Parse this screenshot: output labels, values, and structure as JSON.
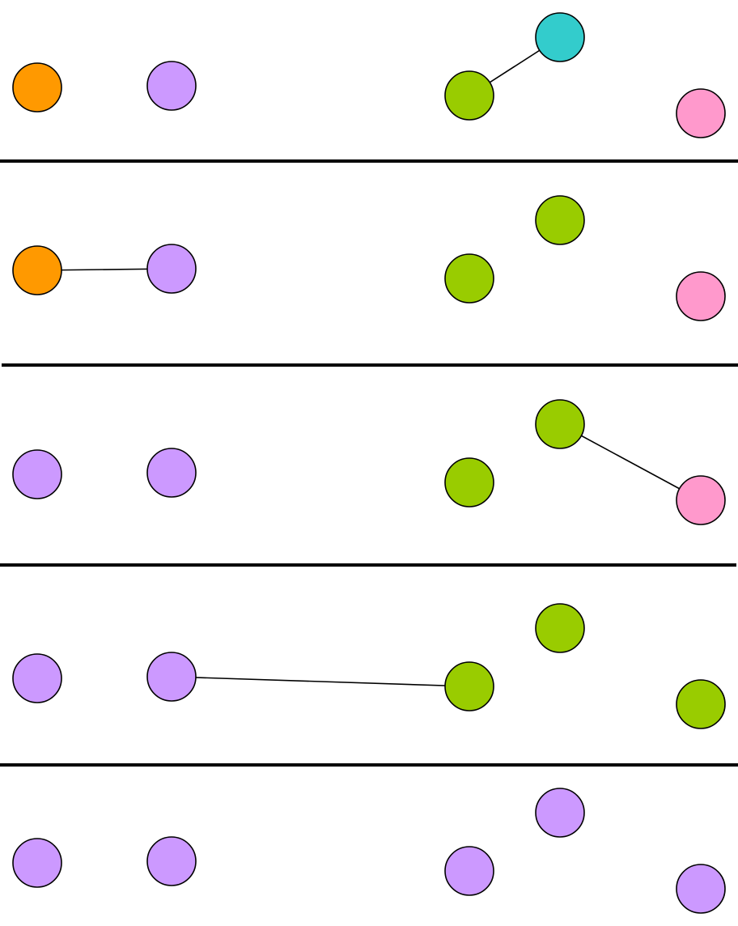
{
  "colors": {
    "orange": "#ff9900",
    "purple": "#cc99ff",
    "green": "#99cc00",
    "teal": "#33cccc",
    "pink": "#ff99cc",
    "outline": "#000000",
    "background": "#ffffff"
  },
  "node_ids": [
    "a",
    "b",
    "c",
    "d",
    "e"
  ],
  "panels": [
    {
      "colors": {
        "a": "orange",
        "b": "purple",
        "c": "green",
        "d": "teal",
        "e": "pink"
      },
      "edge": [
        "c",
        "d"
      ]
    },
    {
      "colors": {
        "a": "orange",
        "b": "purple",
        "c": "green",
        "d": "green",
        "e": "pink"
      },
      "edge": [
        "a",
        "b"
      ]
    },
    {
      "colors": {
        "a": "purple",
        "b": "purple",
        "c": "green",
        "d": "green",
        "e": "pink"
      },
      "edge": [
        "d",
        "e"
      ]
    },
    {
      "colors": {
        "a": "purple",
        "b": "purple",
        "c": "green",
        "d": "green",
        "e": "green"
      },
      "edge": [
        "b",
        "c"
      ]
    },
    {
      "colors": {
        "a": "purple",
        "b": "purple",
        "c": "purple",
        "d": "purple",
        "e": "purple"
      },
      "edge": null
    }
  ]
}
